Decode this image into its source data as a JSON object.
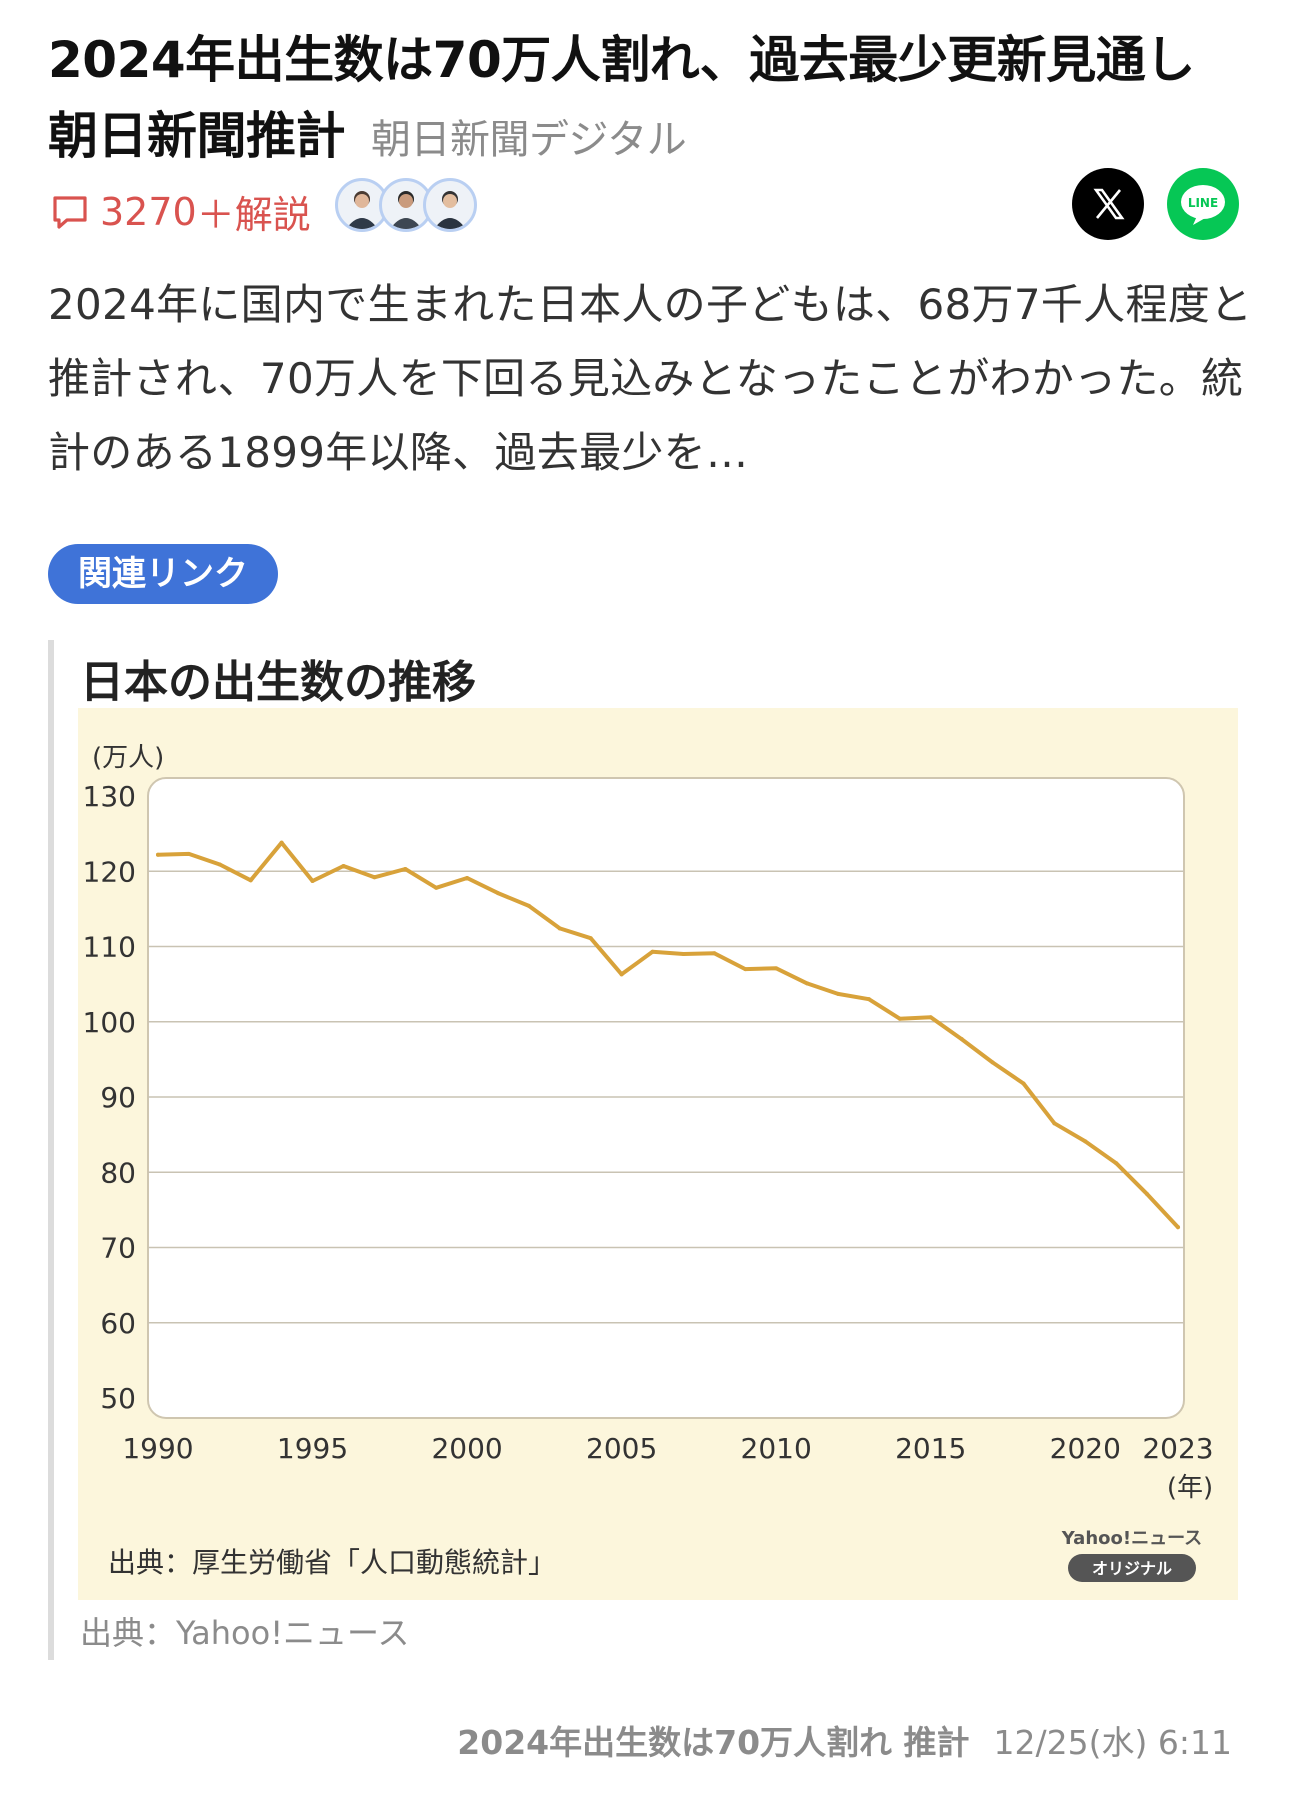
{
  "article": {
    "headline": "2024年出生数は70万人割れ、過去最少更新見通し　朝日新聞推計",
    "source": "朝日新聞デジタル",
    "comment_count": "3270",
    "commentary_label": "＋解説",
    "summary": "2024年に国内で生まれた日本人の子どもは、68万7千人程度と推計され、70万人を下回る見込みとなったことがわかった。統計のある1899年以降、過去最少を…"
  },
  "share": {
    "x_icon": "x-logo-icon",
    "line_label": "LINE"
  },
  "related_link_label": "関連リンク",
  "figure": {
    "title": "日本の出生数の推移",
    "caption": "出典：Yahoo!ニュース",
    "source_note": "出典：厚生労働省「人口動態統計」",
    "brand": "Yahoo!ニュース",
    "brand_badge": "オリジナル"
  },
  "chart_data": {
    "type": "line",
    "title": "日本の出生数の推移",
    "ylabel": "(万人)",
    "xlabel": "(年)",
    "ylim": [
      50,
      130
    ],
    "yticks": [
      130,
      120,
      110,
      100,
      90,
      80,
      70,
      60,
      50
    ],
    "xticks": [
      1990,
      1995,
      2000,
      2005,
      2010,
      2015,
      2020,
      2023
    ],
    "grid": true,
    "color": "#d8a23a",
    "x": [
      1990,
      1991,
      1992,
      1993,
      1994,
      1995,
      1996,
      1997,
      1998,
      1999,
      2000,
      2001,
      2002,
      2003,
      2004,
      2005,
      2006,
      2007,
      2008,
      2009,
      2010,
      2011,
      2012,
      2013,
      2014,
      2015,
      2016,
      2017,
      2018,
      2019,
      2020,
      2021,
      2022,
      2023
    ],
    "values": [
      122.2,
      122.3,
      120.9,
      118.8,
      123.8,
      118.7,
      120.7,
      119.2,
      120.3,
      117.8,
      119.1,
      117.1,
      115.4,
      112.4,
      111.1,
      106.3,
      109.3,
      109.0,
      109.1,
      107.0,
      107.1,
      105.1,
      103.7,
      103.0,
      100.4,
      100.6,
      97.7,
      94.6,
      91.8,
      86.5,
      84.1,
      81.2,
      77.1,
      72.7
    ]
  },
  "footer": {
    "title": "2024年出生数は70万人割れ 推計",
    "date": "12/25(水) 6:11"
  }
}
